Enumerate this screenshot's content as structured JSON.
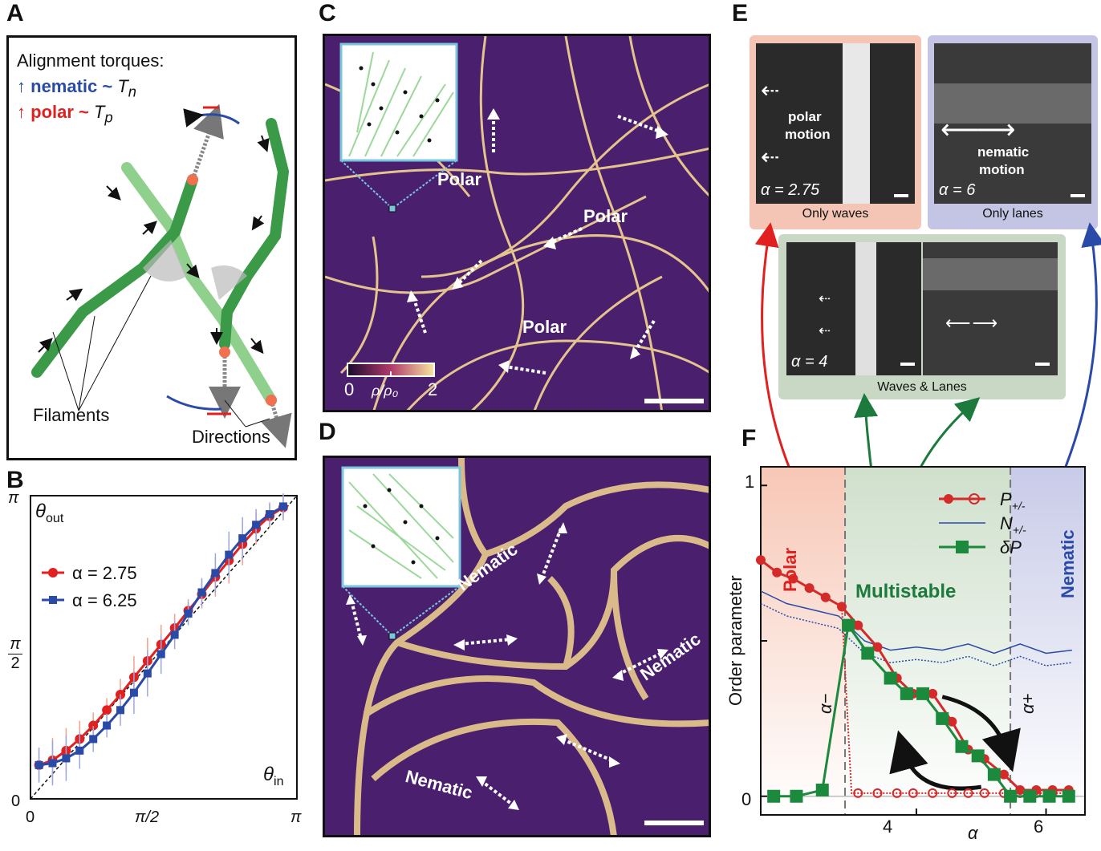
{
  "panels": {
    "a": "A",
    "b": "B",
    "c": "C",
    "d": "D",
    "e": "E",
    "f": "F"
  },
  "panel_a": {
    "heading": "Alignment torques:",
    "nematic_label": "nematic ~ ",
    "nematic_sym": "T",
    "nematic_sub": "n",
    "polar_label": "polar ~ ",
    "polar_sym": "T",
    "polar_sub": "p",
    "filaments": "Filaments",
    "directions": "Directions",
    "colors": {
      "nematic": "#2a4aa8",
      "polar": "#e0211f",
      "filament_dark": "#3a9a48",
      "filament_light": "#8fd08c"
    }
  },
  "panel_b": {
    "ylabel": "θ",
    "ylabel_sub": "out",
    "xlabel": "θ",
    "xlabel_sub": "in",
    "ytick_pi": "π",
    "ytick_half_num": "π",
    "ytick_half_den": "2",
    "ytick_0": "0",
    "xtick_0": "0",
    "xtick_half": "π/2",
    "xtick_pi": "π",
    "chart_data": {
      "type": "line",
      "xlim": [
        0,
        3.1416
      ],
      "ylim": [
        0,
        3.1416
      ],
      "grid": false,
      "legend": "top-left",
      "series": [
        {
          "name": "α = 2.75",
          "color": "#e0211f",
          "x": [
            0.1,
            0.26,
            0.42,
            0.58,
            0.74,
            0.9,
            1.06,
            1.22,
            1.38,
            1.54,
            1.7,
            1.86,
            2.02,
            2.18,
            2.34,
            2.5,
            2.66,
            2.82,
            2.98
          ],
          "y": [
            0.35,
            0.4,
            0.5,
            0.62,
            0.76,
            0.92,
            1.08,
            1.26,
            1.43,
            1.6,
            1.77,
            1.95,
            2.12,
            2.3,
            2.47,
            2.64,
            2.8,
            2.93,
            3.02
          ]
        },
        {
          "name": "α = 6.25",
          "color": "#2a4aa8",
          "x": [
            0.1,
            0.26,
            0.42,
            0.58,
            0.74,
            0.9,
            1.06,
            1.22,
            1.38,
            1.54,
            1.7,
            1.86,
            2.02,
            2.18,
            2.34,
            2.5,
            2.66,
            2.82,
            2.98
          ],
          "y": [
            0.35,
            0.37,
            0.42,
            0.5,
            0.62,
            0.76,
            0.92,
            1.1,
            1.3,
            1.5,
            1.7,
            1.92,
            2.14,
            2.34,
            2.53,
            2.7,
            2.84,
            2.95,
            3.03
          ]
        }
      ]
    }
  },
  "panel_c": {
    "labels": [
      "Polar",
      "Polar",
      "Polar"
    ],
    "cbar_0": "0",
    "cbar_2": "2",
    "cbar_label": "ρ/ρ₀"
  },
  "panel_d": {
    "labels": [
      "Nematic",
      "Nematic",
      "Nematic"
    ]
  },
  "panel_e": {
    "box1_text1": "polar",
    "box1_text2": "motion",
    "box1_alpha": "α = 2.75",
    "box1_caption": "Only waves",
    "box2_text1": "nematic",
    "box2_text2": "motion",
    "box2_alpha": "α = 6",
    "box2_caption": "Only lanes",
    "box3_alpha": "α = 4",
    "box3_caption": "Waves & Lanes",
    "colors": {
      "waves": "#f4c4b4",
      "lanes": "#c4c4e4",
      "both": "#c8d8c4"
    }
  },
  "panel_f": {
    "ylabel": "Order parameter",
    "xlabel": "α",
    "region_polar": "Polar",
    "region_multistable": "Multistable",
    "region_nematic": "Nematic",
    "alpha_minus": "α−",
    "alpha_plus": "α+",
    "yticks": [
      "0",
      "1"
    ],
    "xticks": [
      "4",
      "6"
    ],
    "legend": [
      {
        "label": "P",
        "sub": "+/-"
      },
      {
        "label": "N",
        "sub": "+/-"
      },
      {
        "label": "δP",
        "sub": ""
      }
    ],
    "chart_data": {
      "type": "line",
      "xlim": [
        1.6,
        6.6
      ],
      "ylim": [
        -0.06,
        1.06
      ],
      "grid": false,
      "legend": "top-right",
      "alpha_minus": 2.9,
      "alpha_plus": 5.45,
      "series": [
        {
          "name": "P+/-",
          "color": "#d42a2a",
          "x": [
            1.6,
            1.85,
            2.1,
            2.35,
            2.6,
            2.85,
            3.1,
            3.4,
            3.7,
            3.95,
            4.25,
            4.55,
            4.8,
            5.05,
            5.35,
            5.6,
            5.85,
            6.1,
            6.35
          ],
          "y": [
            0.76,
            0.72,
            0.7,
            0.67,
            0.64,
            0.61,
            0.55,
            0.48,
            0.38,
            0.33,
            0.33,
            0.24,
            0.15,
            0.12,
            0.07,
            0.02,
            0.02,
            0.02,
            0.02
          ]
        },
        {
          "name": "P+/- (lower)",
          "color": "#d42a2a",
          "x": [
            3.1,
            3.4,
            3.7,
            3.95,
            4.25,
            4.55,
            4.8,
            5.05,
            5.35,
            5.6,
            5.85,
            6.1,
            6.35
          ],
          "y": [
            0.01,
            0.01,
            0.01,
            0.01,
            0.01,
            0.01,
            0.01,
            0.01,
            0.01,
            0.01,
            0.01,
            0.01,
            0.01
          ]
        },
        {
          "name": "N+/-",
          "color": "#2a4aa8",
          "x": [
            1.6,
            2.0,
            2.4,
            2.8,
            3.2,
            3.6,
            4.0,
            4.4,
            4.8,
            5.2,
            5.6,
            6.0,
            6.4
          ],
          "y": [
            0.66,
            0.62,
            0.6,
            0.58,
            0.5,
            0.47,
            0.48,
            0.47,
            0.49,
            0.46,
            0.49,
            0.46,
            0.47
          ]
        },
        {
          "name": "δP",
          "color": "#1c8a3c",
          "x": [
            1.8,
            2.15,
            2.55,
            2.95,
            3.25,
            3.6,
            3.85,
            4.1,
            4.4,
            4.7,
            4.95,
            5.2,
            5.45,
            5.75,
            6.05,
            6.35
          ],
          "y": [
            0.0,
            0.0,
            0.02,
            0.55,
            0.46,
            0.38,
            0.33,
            0.33,
            0.25,
            0.16,
            0.13,
            0.07,
            0.0,
            0.0,
            0.0,
            0.0
          ]
        }
      ]
    }
  }
}
